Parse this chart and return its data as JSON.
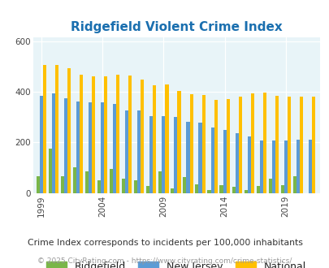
{
  "title": "Ridgefield Violent Crime Index",
  "title_color": "#1a6faf",
  "years": [
    1999,
    2000,
    2001,
    2002,
    2003,
    2004,
    2005,
    2006,
    2007,
    2008,
    2009,
    2010,
    2011,
    2012,
    2013,
    2014,
    2015,
    2016,
    2017,
    2018,
    2019,
    2020,
    2021
  ],
  "ridgefield": [
    65,
    175,
    65,
    100,
    85,
    50,
    95,
    55,
    50,
    28,
    85,
    18,
    62,
    35,
    10,
    30,
    25,
    10,
    28,
    55,
    30,
    65,
    0
  ],
  "new_jersey": [
    385,
    393,
    375,
    363,
    358,
    358,
    352,
    325,
    325,
    305,
    305,
    302,
    282,
    278,
    260,
    250,
    238,
    225,
    207,
    207,
    207,
    210,
    210
  ],
  "national": [
    507,
    507,
    495,
    467,
    460,
    462,
    468,
    464,
    450,
    425,
    428,
    405,
    390,
    388,
    367,
    373,
    380,
    395,
    398,
    383,
    380,
    380,
    380
  ],
  "ridgefield_color": "#7ab648",
  "nj_color": "#5b9bd5",
  "national_color": "#ffc000",
  "bg_color": "#e8f4f8",
  "ylabel_ticks": [
    0,
    200,
    400,
    600
  ],
  "ytick_labels": [
    "0",
    "200",
    "400",
    "600"
  ],
  "ylim": [
    0,
    615
  ],
  "xlim_years": [
    1998.3,
    2021.8
  ],
  "xlabel_ticks": [
    1999,
    2004,
    2009,
    2014,
    2019
  ],
  "subtitle": "Crime Index corresponds to incidents per 100,000 inhabitants",
  "footer": "© 2025 CityRating.com - https://www.cityrating.com/crime-statistics/",
  "legend_labels": [
    "Ridgefield",
    "New Jersey",
    "National"
  ],
  "bar_width": 0.27
}
